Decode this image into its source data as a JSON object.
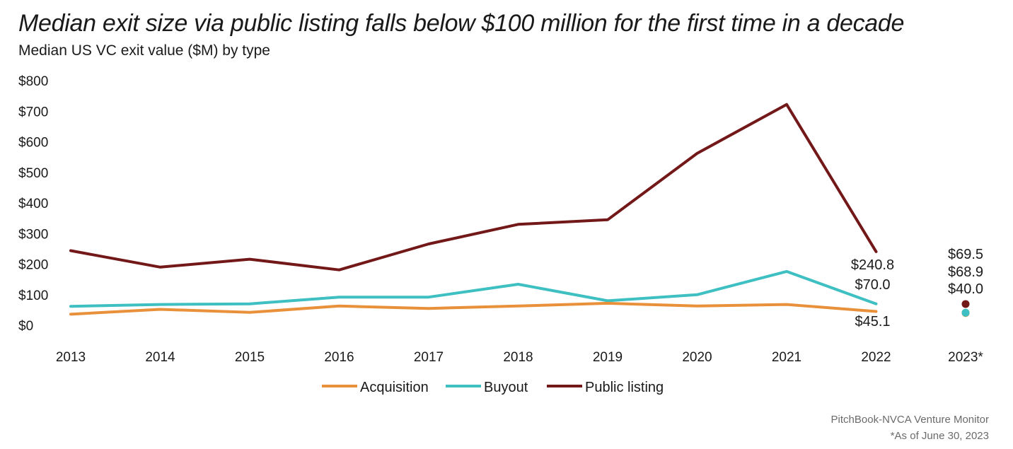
{
  "title": "Median exit size via public listing falls below $100 million for the first time in a decade",
  "subtitle": "Median US VC exit value ($M) by type",
  "source": "PitchBook-NVCA Venture Monitor",
  "footnote": "*As of June 30, 2023",
  "chart_data": {
    "type": "line",
    "categories": [
      "2013",
      "2014",
      "2015",
      "2016",
      "2017",
      "2018",
      "2019",
      "2020",
      "2021",
      "2022",
      "2023*"
    ],
    "ylim": [
      0,
      800
    ],
    "yticks": [
      "$0",
      "$100",
      "$200",
      "$300",
      "$400",
      "$500",
      "$600",
      "$700",
      "$800"
    ],
    "grid": false,
    "legend_position": "bottom",
    "series": [
      {
        "name": "Acquisition",
        "color": "#E8913A",
        "values": [
          36,
          52,
          42,
          63,
          55,
          63,
          72,
          63,
          68,
          45.1,
          40.0
        ]
      },
      {
        "name": "Buyout",
        "color": "#3EBFC2",
        "values": [
          62,
          68,
          70,
          92,
          92,
          134,
          80,
          100,
          176,
          70.0,
          68.9
        ]
      },
      {
        "name": "Public listing",
        "color": "#731818",
        "values": [
          244,
          190,
          216,
          181,
          266,
          330,
          345,
          562,
          722,
          240.8,
          69.5
        ]
      }
    ],
    "annotations_2022": [
      "$240.8",
      "$70.0",
      "$45.1"
    ],
    "annotations_2023": [
      "$69.5",
      "$68.9",
      "$40.0"
    ]
  }
}
